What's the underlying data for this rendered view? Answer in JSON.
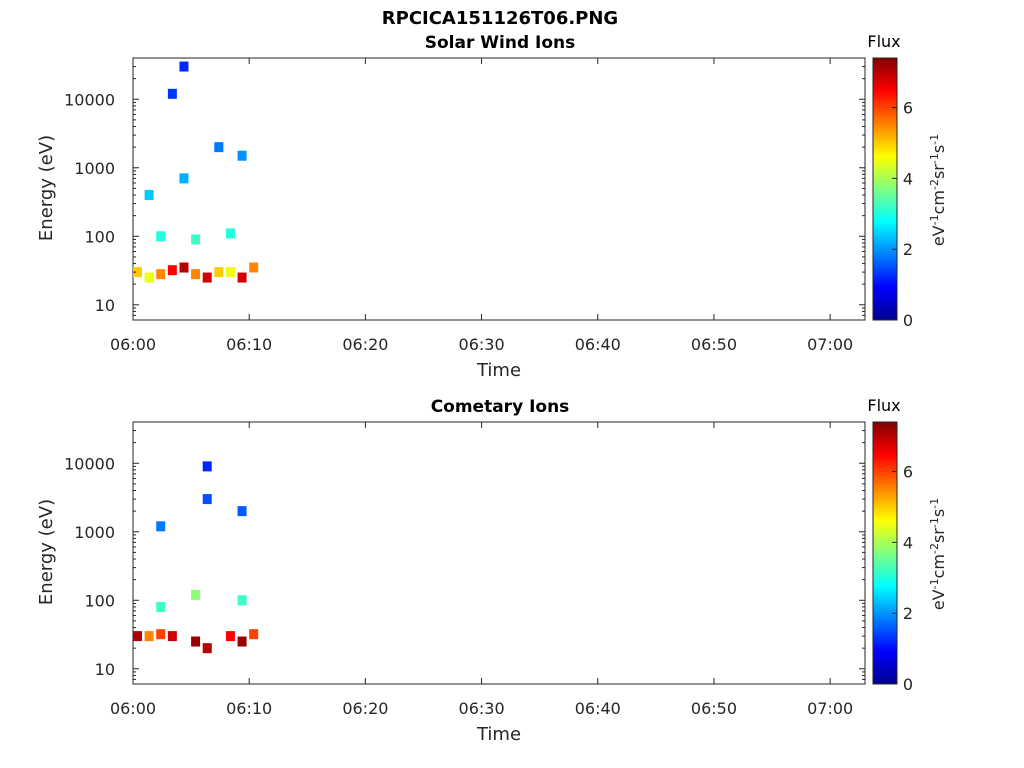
{
  "figure": {
    "title": "RPCICA151126T06.PNG"
  },
  "colorbar": {
    "label": "Flux",
    "units_base": "eV",
    "units_text": "eV-1cm-2sr-1s-1",
    "ticks": [
      "0",
      "2",
      "4",
      "6"
    ],
    "range": [
      0,
      7.4
    ],
    "colormap": "jet"
  },
  "chart_data": [
    {
      "type": "heatmap",
      "title": "Solar Wind Ions",
      "subtitle": "",
      "xlabel": "Time",
      "ylabel": "Energy (eV)",
      "x_ticks": [
        "06:00",
        "06:10",
        "06:20",
        "06:30",
        "06:40",
        "06:50",
        "07:00"
      ],
      "y_ticks": [
        "10",
        "100",
        "1000",
        "10000"
      ],
      "xlim": [
        "06:00",
        "07:03"
      ],
      "ylim": [
        6,
        40000
      ],
      "yscale": "log",
      "grid": false,
      "cells": [
        {
          "t": "06:00",
          "e": 30,
          "f": 5.0
        },
        {
          "t": "06:01",
          "e": 25,
          "f": 4.5
        },
        {
          "t": "06:02",
          "e": 28,
          "f": 5.5
        },
        {
          "t": "06:03",
          "e": 32,
          "f": 6.5
        },
        {
          "t": "06:04",
          "e": 35,
          "f": 7.0
        },
        {
          "t": "06:05",
          "e": 28,
          "f": 5.5
        },
        {
          "t": "06:06",
          "e": 25,
          "f": 6.8
        },
        {
          "t": "06:07",
          "e": 30,
          "f": 5.0
        },
        {
          "t": "06:08",
          "e": 30,
          "f": 4.5
        },
        {
          "t": "06:09",
          "e": 25,
          "f": 6.8
        },
        {
          "t": "06:10",
          "e": 35,
          "f": 5.5
        },
        {
          "t": "06:02",
          "e": 100,
          "f": 3.0
        },
        {
          "t": "06:05",
          "e": 90,
          "f": 3.2
        },
        {
          "t": "06:08",
          "e": 110,
          "f": 3.0
        },
        {
          "t": "06:01",
          "e": 400,
          "f": 2.4
        },
        {
          "t": "06:04",
          "e": 700,
          "f": 2.2
        },
        {
          "t": "06:07",
          "e": 2000,
          "f": 1.8
        },
        {
          "t": "06:09",
          "e": 1500,
          "f": 2.0
        },
        {
          "t": "06:03",
          "e": 12000,
          "f": 1.3
        },
        {
          "t": "06:04",
          "e": 30000,
          "f": 1.2
        }
      ]
    },
    {
      "type": "heatmap",
      "title": "Cometary Ions",
      "subtitle": "",
      "xlabel": "Time",
      "ylabel": "Energy (eV)",
      "x_ticks": [
        "06:00",
        "06:10",
        "06:20",
        "06:30",
        "06:40",
        "06:50",
        "07:00"
      ],
      "y_ticks": [
        "10",
        "100",
        "1000",
        "10000"
      ],
      "xlim": [
        "06:00",
        "07:03"
      ],
      "ylim": [
        6,
        40000
      ],
      "yscale": "log",
      "grid": false,
      "cells": [
        {
          "t": "06:00",
          "e": 30,
          "f": 7.0
        },
        {
          "t": "06:01",
          "e": 30,
          "f": 5.5
        },
        {
          "t": "06:02",
          "e": 32,
          "f": 6.0
        },
        {
          "t": "06:03",
          "e": 30,
          "f": 6.8
        },
        {
          "t": "06:05",
          "e": 25,
          "f": 7.2
        },
        {
          "t": "06:06",
          "e": 20,
          "f": 7.0
        },
        {
          "t": "06:08",
          "e": 30,
          "f": 6.5
        },
        {
          "t": "06:09",
          "e": 25,
          "f": 7.2
        },
        {
          "t": "06:10",
          "e": 32,
          "f": 6.0
        },
        {
          "t": "06:02",
          "e": 80,
          "f": 3.2
        },
        {
          "t": "06:05",
          "e": 120,
          "f": 3.8
        },
        {
          "t": "06:09",
          "e": 100,
          "f": 3.2
        },
        {
          "t": "06:02",
          "e": 1200,
          "f": 1.8
        },
        {
          "t": "06:06",
          "e": 3000,
          "f": 1.5
        },
        {
          "t": "06:06",
          "e": 9000,
          "f": 1.2
        },
        {
          "t": "06:09",
          "e": 2000,
          "f": 1.6
        }
      ]
    }
  ]
}
